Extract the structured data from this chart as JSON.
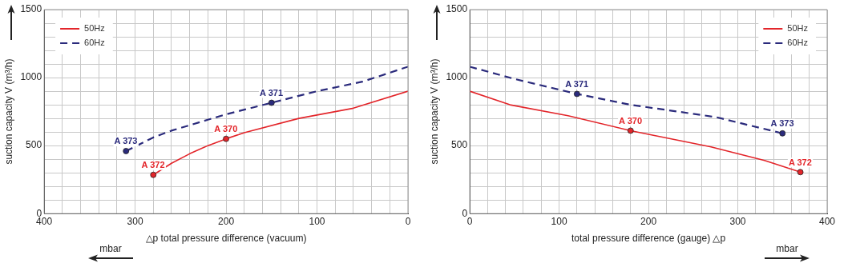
{
  "chart_data": [
    {
      "type": "line",
      "xlabel": "△p total pressure difference (vacuum)",
      "ylabel": "suction capacity V (m³/h)",
      "series": [
        {
          "name": "50Hz",
          "color": "#e3262b",
          "line_style": "solid",
          "x": [
            280,
            260,
            240,
            220,
            200,
            180,
            120,
            60,
            0
          ],
          "values": [
            285,
            370,
            440,
            500,
            550,
            595,
            700,
            775,
            900
          ]
        },
        {
          "name": "60Hz",
          "color": "#2b2b7c",
          "line_style": "dashed",
          "x": [
            310,
            280,
            260,
            220,
            200,
            150,
            100,
            50,
            0
          ],
          "values": [
            460,
            560,
            610,
            690,
            730,
            815,
            900,
            970,
            1080
          ]
        }
      ],
      "xlim": [
        400,
        0
      ],
      "ylim": [
        0,
        1500
      ],
      "xticks": [
        {
          "value": 0,
          "label": "0"
        },
        {
          "value": 20,
          "label": null
        },
        {
          "value": 40,
          "label": null
        },
        {
          "value": 60,
          "label": null
        },
        {
          "value": 80,
          "label": null
        },
        {
          "value": 100,
          "label": "100"
        },
        {
          "value": 120,
          "label": null
        },
        {
          "value": 140,
          "label": null
        },
        {
          "value": 160,
          "label": null
        },
        {
          "value": 180,
          "label": null
        },
        {
          "value": 200,
          "label": "200"
        },
        {
          "value": 220,
          "label": null
        },
        {
          "value": 240,
          "label": null
        },
        {
          "value": 260,
          "label": null
        },
        {
          "value": 280,
          "label": null
        },
        {
          "value": 300,
          "label": "300"
        },
        {
          "value": 320,
          "label": null
        },
        {
          "value": 340,
          "label": null
        },
        {
          "value": 360,
          "label": null
        },
        {
          "value": 380,
          "label": null
        },
        {
          "value": 400,
          "label": "400"
        }
      ],
      "yticks": [
        {
          "value": 0,
          "label": "0"
        },
        {
          "value": 100,
          "label": null
        },
        {
          "value": 200,
          "label": null
        },
        {
          "value": 300,
          "label": null
        },
        {
          "value": 400,
          "label": null
        },
        {
          "value": 500,
          "label": "500"
        },
        {
          "value": 600,
          "label": null
        },
        {
          "value": 700,
          "label": null
        },
        {
          "value": 800,
          "label": null
        },
        {
          "value": 900,
          "label": null
        },
        {
          "value": 1000,
          "label": "1000"
        },
        {
          "value": 1100,
          "label": null
        },
        {
          "value": 1200,
          "label": null
        },
        {
          "value": 1300,
          "label": null
        },
        {
          "value": 1400,
          "label": null
        },
        {
          "value": 1500,
          "label": "1500"
        }
      ],
      "grid": true,
      "legend": "top left",
      "annotations": [
        {
          "text": "A 373",
          "x": 310,
          "y": 460
        },
        {
          "text": "A 371",
          "x": 150,
          "y": 815
        },
        {
          "text": "A 372",
          "x": 280,
          "y": 285
        },
        {
          "text": "A 370",
          "x": 200,
          "y": 550
        },
        "mbar"
      ]
    },
    {
      "type": "line",
      "xlabel": "total pressure difference (gauge) △p",
      "ylabel": "suction capacity V (m³/h)",
      "series": [
        {
          "name": "50Hz",
          "color": "#e3262b",
          "line_style": "solid",
          "x": [
            0,
            45,
            110,
            180,
            270,
            330,
            370
          ],
          "values": [
            900,
            800,
            720,
            610,
            490,
            390,
            305
          ]
        },
        {
          "name": "60Hz",
          "color": "#2b2b7c",
          "line_style": "dashed",
          "x": [
            0,
            50,
            120,
            180,
            275,
            350
          ],
          "values": [
            1080,
            990,
            880,
            800,
            710,
            590
          ]
        }
      ],
      "xlim": [
        0,
        400
      ],
      "ylim": [
        0,
        1500
      ],
      "xticks": [
        {
          "value": 0,
          "label": "0"
        },
        {
          "value": 20,
          "label": null
        },
        {
          "value": 40,
          "label": null
        },
        {
          "value": 60,
          "label": null
        },
        {
          "value": 80,
          "label": null
        },
        {
          "value": 100,
          "label": "100"
        },
        {
          "value": 120,
          "label": null
        },
        {
          "value": 140,
          "label": null
        },
        {
          "value": 160,
          "label": null
        },
        {
          "value": 180,
          "label": null
        },
        {
          "value": 200,
          "label": "200"
        },
        {
          "value": 220,
          "label": null
        },
        {
          "value": 240,
          "label": null
        },
        {
          "value": 260,
          "label": null
        },
        {
          "value": 280,
          "label": null
        },
        {
          "value": 300,
          "label": "300"
        },
        {
          "value": 320,
          "label": null
        },
        {
          "value": 340,
          "label": null
        },
        {
          "value": 360,
          "label": null
        },
        {
          "value": 380,
          "label": null
        },
        {
          "value": 400,
          "label": "400"
        }
      ],
      "yticks": [
        {
          "value": 0,
          "label": "0"
        },
        {
          "value": 100,
          "label": null
        },
        {
          "value": 200,
          "label": null
        },
        {
          "value": 300,
          "label": null
        },
        {
          "value": 400,
          "label": null
        },
        {
          "value": 500,
          "label": "500"
        },
        {
          "value": 600,
          "label": null
        },
        {
          "value": 700,
          "label": null
        },
        {
          "value": 800,
          "label": null
        },
        {
          "value": 900,
          "label": null
        },
        {
          "value": 1000,
          "label": "1000"
        },
        {
          "value": 1100,
          "label": null
        },
        {
          "value": 1200,
          "label": null
        },
        {
          "value": 1300,
          "label": null
        },
        {
          "value": 1400,
          "label": null
        },
        {
          "value": 1500,
          "label": "1500"
        }
      ],
      "grid": true,
      "legend": "top right",
      "annotations": [
        {
          "text": "A 371",
          "x": 120,
          "y": 880
        },
        {
          "text": "A 370",
          "x": 180,
          "y": 610
        },
        {
          "text": "A 373",
          "x": 350,
          "y": 590
        },
        {
          "text": "A 372",
          "x": 370,
          "y": 305
        },
        "mbar"
      ]
    }
  ]
}
